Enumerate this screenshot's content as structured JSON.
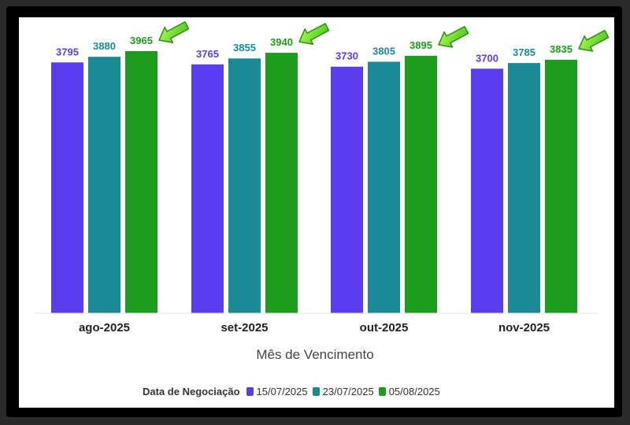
{
  "chart_data": {
    "type": "bar",
    "categories": [
      "ago-2025",
      "set-2025",
      "out-2025",
      "nov-2025"
    ],
    "series": [
      {
        "name": "15/07/2025",
        "color": "#5b3df0",
        "values": [
          3795,
          3765,
          3730,
          3700
        ]
      },
      {
        "name": "23/07/2025",
        "color": "#1a8a97",
        "values": [
          3880,
          3855,
          3805,
          3785
        ]
      },
      {
        "name": "05/08/2025",
        "color": "#1c9e1c",
        "values": [
          3965,
          3940,
          3895,
          3835
        ]
      }
    ],
    "xlabel": "Mês de Vencimento",
    "ylabel": "",
    "legend_title": "Data de Negociação",
    "legend_position": "bottom",
    "ylim": [
      0,
      4150
    ],
    "grid": false,
    "annotations": "arrow-icon pointing at highest series value in each group"
  }
}
